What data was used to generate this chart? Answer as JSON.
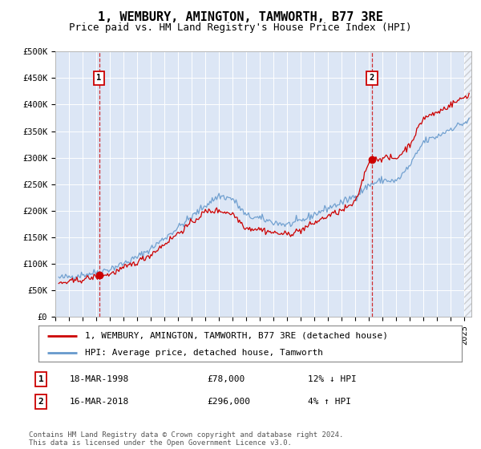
{
  "title": "1, WEMBURY, AMINGTON, TAMWORTH, B77 3RE",
  "subtitle": "Price paid vs. HM Land Registry's House Price Index (HPI)",
  "ylim": [
    0,
    500000
  ],
  "yticks": [
    0,
    50000,
    100000,
    150000,
    200000,
    250000,
    300000,
    350000,
    400000,
    450000,
    500000
  ],
  "ytick_labels": [
    "£0",
    "£50K",
    "£100K",
    "£150K",
    "£200K",
    "£250K",
    "£300K",
    "£350K",
    "£400K",
    "£450K",
    "£500K"
  ],
  "xlim_start": 1995.3,
  "xlim_end": 2025.5,
  "plot_bg_color": "#dce6f5",
  "red_line_color": "#cc0000",
  "blue_line_color": "#6699cc",
  "marker1_x": 1998.21,
  "marker1_y": 78000,
  "marker2_x": 2018.21,
  "marker2_y": 296000,
  "vline1_x": 1998.21,
  "vline2_x": 2018.21,
  "legend_label_red": "1, WEMBURY, AMINGTON, TAMWORTH, B77 3RE (detached house)",
  "legend_label_blue": "HPI: Average price, detached house, Tamworth",
  "annotation1_num": "1",
  "annotation1_date": "18-MAR-1998",
  "annotation1_price": "£78,000",
  "annotation1_hpi": "12% ↓ HPI",
  "annotation2_num": "2",
  "annotation2_date": "16-MAR-2018",
  "annotation2_price": "£296,000",
  "annotation2_hpi": "4% ↑ HPI",
  "footer": "Contains HM Land Registry data © Crown copyright and database right 2024.\nThis data is licensed under the Open Government Licence v3.0.",
  "title_fontsize": 11,
  "subtitle_fontsize": 9,
  "tick_fontsize": 7.5,
  "legend_fontsize": 8,
  "annot_fontsize": 8,
  "footer_fontsize": 6.5
}
